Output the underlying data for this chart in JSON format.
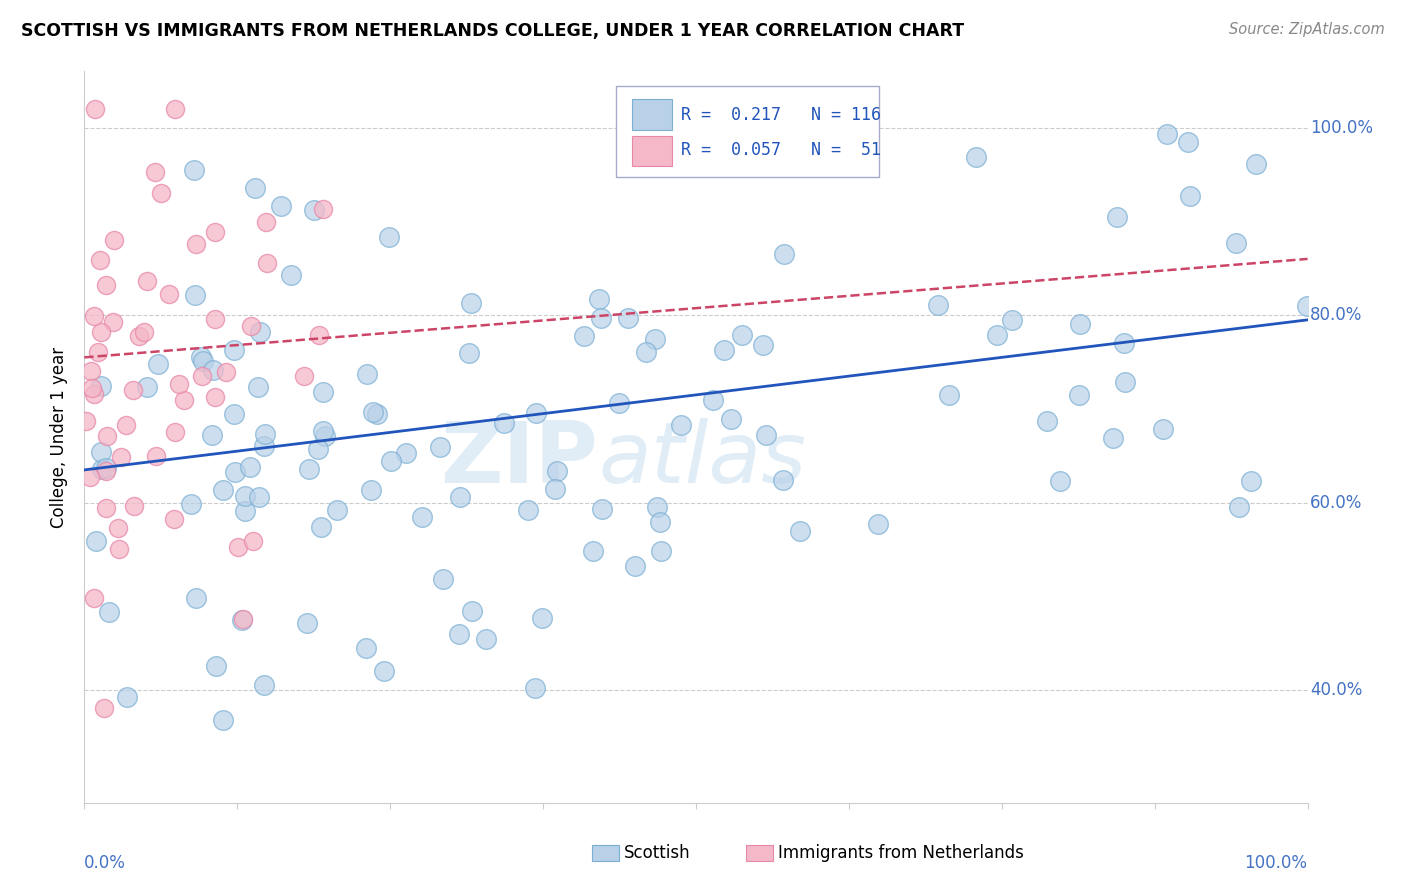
{
  "title": "SCOTTISH VS IMMIGRANTS FROM NETHERLANDS COLLEGE, UNDER 1 YEAR CORRELATION CHART",
  "source": "Source: ZipAtlas.com",
  "ylabel": "College, Under 1 year",
  "legend_entry1": "R =  0.217   N = 116",
  "legend_entry2": "R =  0.057   N =  51",
  "series1_color": "#b8d0e8",
  "series1_edge": "#7bafd4",
  "series2_color": "#f4b8c8",
  "series2_edge": "#e888a8",
  "trend1_color": "#2255bb",
  "trend2_color": "#cc4466",
  "legend_label1": "Scottish",
  "legend_label2": "Immigrants from Netherlands",
  "watermark": "ZIPatlas",
  "xlim": [
    0.0,
    1.0
  ],
  "ylim": [
    0.28,
    1.06
  ],
  "ytick_vals": [
    0.4,
    0.6,
    0.8,
    1.0
  ],
  "blue_trend_x0": 0.0,
  "blue_trend_y0": 0.635,
  "blue_trend_x1": 1.0,
  "blue_trend_y1": 0.795,
  "pink_trend_x0": 0.0,
  "pink_trend_y0": 0.755,
  "pink_trend_x1": 1.0,
  "pink_trend_y1": 0.86
}
